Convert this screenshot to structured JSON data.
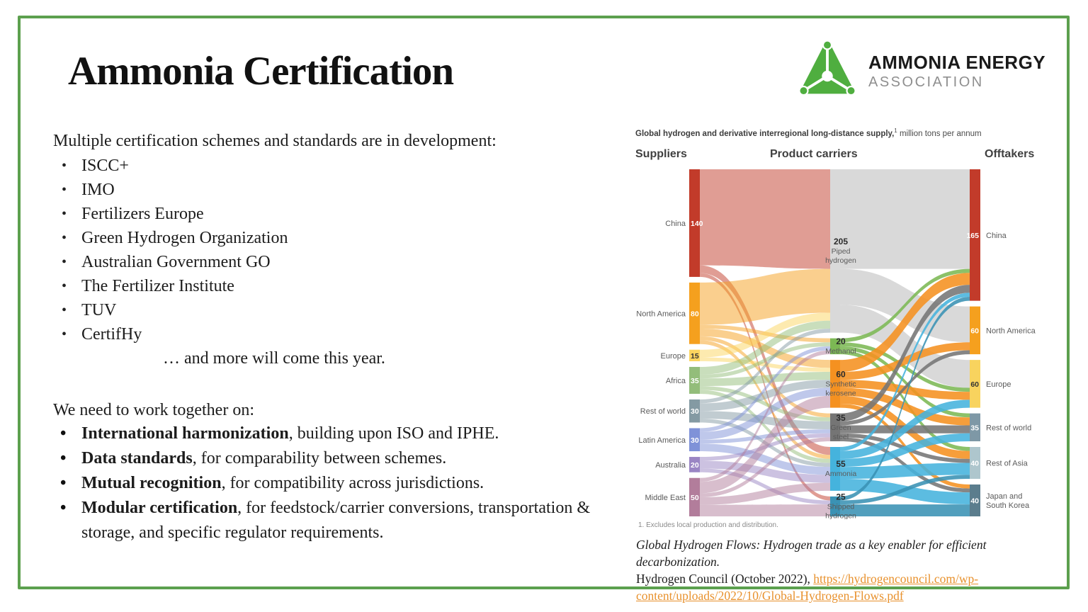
{
  "slide": {
    "title": "Ammonia Certification",
    "border_color": "#5ca04e"
  },
  "logo": {
    "line1": "AMMONIA ENERGY",
    "line2": "ASSOCIATION",
    "green": "#4fae3f"
  },
  "intro": "Multiple certification schemes and standards are in development:",
  "schemes": [
    "ISCC+",
    "IMO",
    "Fertilizers Europe",
    "Green Hydrogen Organization",
    "Australian Government GO",
    "The Fertilizer Institute",
    "TUV",
    "CertifHy"
  ],
  "more_line": "… and more will come this year.",
  "collab": {
    "heading": "We need to work together on:",
    "items": [
      {
        "bold": "International harmonization",
        "rest": ", building upon ISO and IPHE."
      },
      {
        "bold": "Data standards",
        "rest": ", for comparability between schemes."
      },
      {
        "bold": "Mutual recognition",
        "rest": ", for compatibility across jurisdictions."
      },
      {
        "bold": "Modular certification",
        "rest": ", for feedstock/carrier conversions, transportation & storage, and specific regulator requirements."
      }
    ]
  },
  "chart_data": {
    "type": "sankey",
    "title_bold": "Global hydrogen and derivative interregional long-distance supply,",
    "title_sup": "1",
    "title_rest": " million tons per annum",
    "columns": [
      "Suppliers",
      "Product carriers",
      "Offtakers"
    ],
    "footnote": "1.  Excludes local production and distribution.",
    "units_total": 400,
    "suppliers": [
      {
        "name": "China",
        "value": 140,
        "color": "#c23b2a"
      },
      {
        "name": "North America",
        "value": 80,
        "color": "#f5a01e"
      },
      {
        "name": "Europe",
        "value": 15,
        "color": "#fbd55f",
        "num_color": "#333333"
      },
      {
        "name": "Africa",
        "value": 35,
        "color": "#93bd7a"
      },
      {
        "name": "Rest of world",
        "value": 30,
        "color": "#849aa3"
      },
      {
        "name": "Latin America",
        "value": 30,
        "color": "#7f92d8"
      },
      {
        "name": "Australia",
        "value": 20,
        "color": "#9a85c4"
      },
      {
        "name": "Middle East",
        "value": 50,
        "color": "#b27d9b"
      }
    ],
    "carriers": [
      {
        "name": "Piped hydrogen",
        "name_lines": [
          "Piped",
          "hydrogen"
        ],
        "value": 205,
        "color": "#d9d9d9",
        "link_opacity": 1
      },
      {
        "name": "Methanol",
        "name_lines": [
          "Methanol"
        ],
        "value": 20,
        "color": "#7cb854"
      },
      {
        "name": "Synthetic kerosene",
        "name_lines": [
          "Synthetic",
          "kerosene"
        ],
        "value": 60,
        "color": "#f59120"
      },
      {
        "name": "Green steel",
        "name_lines": [
          "Green",
          "steel"
        ],
        "value": 35,
        "color": "#757575"
      },
      {
        "name": "Ammonia",
        "name_lines": [
          "Ammonia"
        ],
        "value": 55,
        "color": "#45b3dd"
      },
      {
        "name": "Shipped hydrogen",
        "name_lines": [
          "Shipped",
          "hydrogen"
        ],
        "value": 25,
        "color": "#3a92b4"
      }
    ],
    "offtakers": [
      {
        "name": "China",
        "name_lines": [
          "China"
        ],
        "value": 165,
        "color": "#c23b2a"
      },
      {
        "name": "North America",
        "name_lines": [
          "North America"
        ],
        "value": 60,
        "color": "#f5a01e"
      },
      {
        "name": "Europe",
        "name_lines": [
          "Europe"
        ],
        "value": 60,
        "color": "#f8d35e",
        "num_color": "#333333"
      },
      {
        "name": "Rest of world",
        "name_lines": [
          "Rest of world"
        ],
        "value": 35,
        "color": "#7e98a6"
      },
      {
        "name": "Rest of Asia",
        "name_lines": [
          "Rest of Asia"
        ],
        "value": 40,
        "color": "#aec6cd"
      },
      {
        "name": "Japan and South Korea",
        "name_lines": [
          "Japan and",
          "South Korea"
        ],
        "value": 40,
        "color": "#5b7d8d"
      }
    ],
    "links_supplier_carrier_note": "link values estimated from band widths; node totals are as labeled",
    "links_supplier_carrier": [
      [
        0,
        0,
        125
      ],
      [
        0,
        4,
        10
      ],
      [
        0,
        5,
        5
      ],
      [
        1,
        0,
        55
      ],
      [
        1,
        1,
        5
      ],
      [
        1,
        2,
        10
      ],
      [
        1,
        3,
        5
      ],
      [
        1,
        4,
        5
      ],
      [
        2,
        0,
        10
      ],
      [
        2,
        2,
        5
      ],
      [
        3,
        0,
        10
      ],
      [
        3,
        1,
        5
      ],
      [
        3,
        2,
        10
      ],
      [
        3,
        3,
        5
      ],
      [
        3,
        4,
        5
      ],
      [
        4,
        0,
        5
      ],
      [
        4,
        2,
        10
      ],
      [
        4,
        3,
        10
      ],
      [
        4,
        4,
        5
      ],
      [
        5,
        1,
        5
      ],
      [
        5,
        2,
        10
      ],
      [
        5,
        3,
        5
      ],
      [
        5,
        4,
        10
      ],
      [
        6,
        3,
        5
      ],
      [
        6,
        4,
        10
      ],
      [
        6,
        5,
        5
      ],
      [
        7,
        1,
        5
      ],
      [
        7,
        2,
        15
      ],
      [
        7,
        3,
        5
      ],
      [
        7,
        4,
        10
      ],
      [
        7,
        5,
        15
      ]
    ],
    "links_carrier_offtaker": [
      [
        0,
        0,
        125
      ],
      [
        0,
        1,
        45
      ],
      [
        0,
        2,
        35
      ],
      [
        1,
        0,
        5
      ],
      [
        1,
        2,
        5
      ],
      [
        1,
        3,
        5
      ],
      [
        1,
        4,
        5
      ],
      [
        2,
        0,
        15
      ],
      [
        2,
        1,
        10
      ],
      [
        2,
        2,
        10
      ],
      [
        2,
        3,
        10
      ],
      [
        2,
        4,
        10
      ],
      [
        2,
        5,
        5
      ],
      [
        3,
        0,
        10
      ],
      [
        3,
        1,
        5
      ],
      [
        3,
        3,
        10
      ],
      [
        3,
        4,
        5
      ],
      [
        3,
        5,
        5
      ],
      [
        4,
        0,
        5
      ],
      [
        4,
        2,
        10
      ],
      [
        4,
        3,
        10
      ],
      [
        4,
        4,
        15
      ],
      [
        4,
        5,
        15
      ],
      [
        5,
        0,
        5
      ],
      [
        5,
        4,
        5
      ],
      [
        5,
        5,
        15
      ]
    ]
  },
  "citation": {
    "line1": "Global Hydrogen Flows: Hydrogen trade as a key enabler for efficient decarbonization.",
    "line2_prefix": "Hydrogen Council (October 2022), ",
    "link_text": "https://hydrogencouncil.com/wp-content/uploads/2022/10/Global-Hydrogen-Flows.pdf",
    "link_color": "#e8912d"
  }
}
